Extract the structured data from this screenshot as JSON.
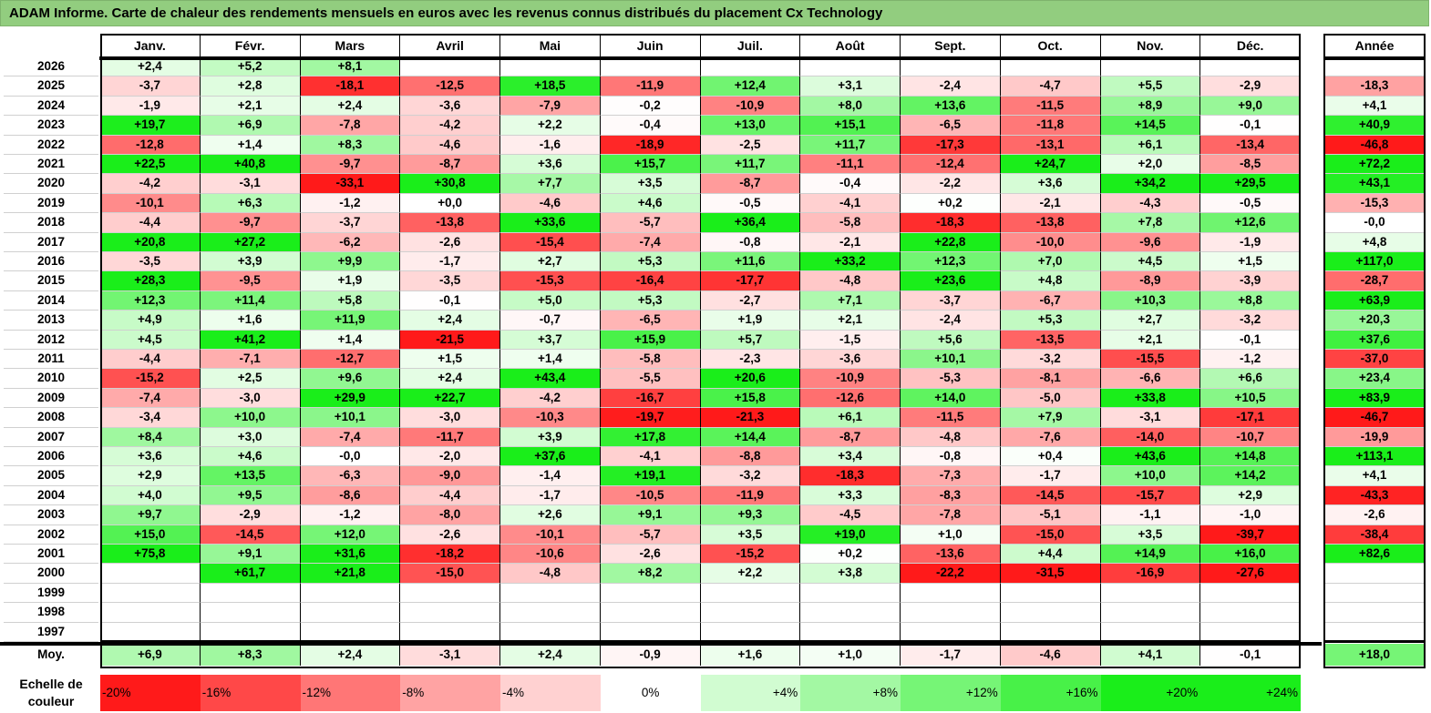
{
  "title": "ADAM Informe. Carte de chaleur des rendements mensuels en euros avec les revenus connus distribués du placement Cx Technology",
  "chart_data": {
    "type": "heatmap",
    "title": "ADAM Informe. Carte de chaleur des rendements mensuels en euros avec les revenus connus distribués du placement Cx Technology",
    "columns": [
      "Janv.",
      "Févr.",
      "Mars",
      "Avril",
      "Mai",
      "Juin",
      "Juil.",
      "Août",
      "Sept.",
      "Oct.",
      "Nov.",
      "Déc."
    ],
    "annual_header": "Année",
    "rows": [
      {
        "label": "2026",
        "values": [
          "+2,4",
          "+5,2",
          "+8,1",
          "",
          "",
          "",
          "",
          "",
          "",
          "",
          "",
          ""
        ],
        "annual": ""
      },
      {
        "label": "2025",
        "values": [
          "-3,7",
          "+2,8",
          "-18,1",
          "-12,5",
          "+18,5",
          "-11,9",
          "+12,4",
          "+3,1",
          "-2,4",
          "-4,7",
          "+5,5",
          "-2,9"
        ],
        "annual": "-18,3"
      },
      {
        "label": "2024",
        "values": [
          "-1,9",
          "+2,1",
          "+2,4",
          "-3,6",
          "-7,9",
          "-0,2",
          "-10,9",
          "+8,0",
          "+13,6",
          "-11,5",
          "+8,9",
          "+9,0"
        ],
        "annual": "+4,1"
      },
      {
        "label": "2023",
        "values": [
          "+19,7",
          "+6,9",
          "-7,8",
          "-4,2",
          "+2,2",
          "-0,4",
          "+13,0",
          "+15,1",
          "-6,5",
          "-11,8",
          "+14,5",
          "-0,1"
        ],
        "annual": "+40,9"
      },
      {
        "label": "2022",
        "values": [
          "-12,8",
          "+1,4",
          "+8,3",
          "-4,6",
          "-1,6",
          "-18,9",
          "-2,5",
          "+11,7",
          "-17,3",
          "-13,1",
          "+6,1",
          "-13,4"
        ],
        "annual": "-46,8"
      },
      {
        "label": "2021",
        "values": [
          "+22,5",
          "+40,8",
          "-9,7",
          "-8,7",
          "+3,6",
          "+15,7",
          "+11,7",
          "-11,1",
          "-12,4",
          "+24,7",
          "+2,0",
          "-8,5"
        ],
        "annual": "+72,2"
      },
      {
        "label": "2020",
        "values": [
          "-4,2",
          "-3,1",
          "-33,1",
          "+30,8",
          "+7,7",
          "+3,5",
          "-8,7",
          "-0,4",
          "-2,2",
          "+3,6",
          "+34,2",
          "+29,5"
        ],
        "annual": "+43,1"
      },
      {
        "label": "2019",
        "values": [
          "-10,1",
          "+6,3",
          "-1,2",
          "+0,0",
          "-4,6",
          "+4,6",
          "-0,5",
          "-4,1",
          "+0,2",
          "-2,1",
          "-4,3",
          "-0,5"
        ],
        "annual": "-15,3"
      },
      {
        "label": "2018",
        "values": [
          "-4,4",
          "-9,7",
          "-3,7",
          "-13,8",
          "+33,6",
          "-5,7",
          "+36,4",
          "-5,8",
          "-18,3",
          "-13,8",
          "+7,8",
          "+12,6"
        ],
        "annual": "-0,0"
      },
      {
        "label": "2017",
        "values": [
          "+20,8",
          "+27,2",
          "-6,2",
          "-2,6",
          "-15,4",
          "-7,4",
          "-0,8",
          "-2,1",
          "+22,8",
          "-10,0",
          "-9,6",
          "-1,9"
        ],
        "annual": "+4,8"
      },
      {
        "label": "2016",
        "values": [
          "-3,5",
          "+3,9",
          "+9,9",
          "-1,7",
          "+2,7",
          "+5,3",
          "+11,6",
          "+33,2",
          "+12,3",
          "+7,0",
          "+4,5",
          "+1,5"
        ],
        "annual": "+117,0"
      },
      {
        "label": "2015",
        "values": [
          "+28,3",
          "-9,5",
          "+1,9",
          "-3,5",
          "-15,3",
          "-16,4",
          "-17,7",
          "-4,8",
          "+23,6",
          "+4,8",
          "-8,9",
          "-3,9"
        ],
        "annual": "-28,7"
      },
      {
        "label": "2014",
        "values": [
          "+12,3",
          "+11,4",
          "+5,8",
          "-0,1",
          "+5,0",
          "+5,3",
          "-2,7",
          "+7,1",
          "-3,7",
          "-6,7",
          "+10,3",
          "+8,8"
        ],
        "annual": "+63,9"
      },
      {
        "label": "2013",
        "values": [
          "+4,9",
          "+1,6",
          "+11,9",
          "+2,4",
          "-0,7",
          "-6,5",
          "+1,9",
          "+2,1",
          "-2,4",
          "+5,3",
          "+2,7",
          "-3,2"
        ],
        "annual": "+20,3"
      },
      {
        "label": "2012",
        "values": [
          "+4,5",
          "+41,2",
          "+1,4",
          "-21,5",
          "+3,7",
          "+15,9",
          "+5,7",
          "-1,5",
          "+5,6",
          "-13,5",
          "+2,1",
          "-0,1"
        ],
        "annual": "+37,6"
      },
      {
        "label": "2011",
        "values": [
          "-4,4",
          "-7,1",
          "-12,7",
          "+1,5",
          "+1,4",
          "-5,8",
          "-2,3",
          "-3,6",
          "+10,1",
          "-3,2",
          "-15,5",
          "-1,2"
        ],
        "annual": "-37,0"
      },
      {
        "label": "2010",
        "values": [
          "-15,2",
          "+2,5",
          "+9,6",
          "+2,4",
          "+43,4",
          "-5,5",
          "+20,6",
          "-10,9",
          "-5,3",
          "-8,1",
          "-6,6",
          "+6,6"
        ],
        "annual": "+23,4"
      },
      {
        "label": "2009",
        "values": [
          "-7,4",
          "-3,0",
          "+29,9",
          "+22,7",
          "-4,2",
          "-16,7",
          "+15,8",
          "-12,6",
          "+14,0",
          "-5,0",
          "+33,8",
          "+10,5"
        ],
        "annual": "+83,9"
      },
      {
        "label": "2008",
        "values": [
          "-3,4",
          "+10,0",
          "+10,1",
          "-3,0",
          "-10,3",
          "-19,7",
          "-21,3",
          "+6,1",
          "-11,5",
          "+7,9",
          "-3,1",
          "-17,1"
        ],
        "annual": "-46,7"
      },
      {
        "label": "2007",
        "values": [
          "+8,4",
          "+3,0",
          "-7,4",
          "-11,7",
          "+3,9",
          "+17,8",
          "+14,4",
          "-8,7",
          "-4,8",
          "-7,6",
          "-14,0",
          "-10,7"
        ],
        "annual": "-19,9"
      },
      {
        "label": "2006",
        "values": [
          "+3,6",
          "+4,6",
          "-0,0",
          "-2,0",
          "+37,6",
          "-4,1",
          "-8,8",
          "+3,4",
          "-0,8",
          "+0,4",
          "+43,6",
          "+14,8"
        ],
        "annual": "+113,1"
      },
      {
        "label": "2005",
        "values": [
          "+2,9",
          "+13,5",
          "-6,3",
          "-9,0",
          "-1,4",
          "+19,1",
          "-3,2",
          "-18,3",
          "-7,3",
          "-1,7",
          "+10,0",
          "+14,2"
        ],
        "annual": "+4,1"
      },
      {
        "label": "2004",
        "values": [
          "+4,0",
          "+9,5",
          "-8,6",
          "-4,4",
          "-1,7",
          "-10,5",
          "-11,9",
          "+3,3",
          "-8,3",
          "-14,5",
          "-15,7",
          "+2,9"
        ],
        "annual": "-43,3"
      },
      {
        "label": "2003",
        "values": [
          "+9,7",
          "-2,9",
          "-1,2",
          "-8,0",
          "+2,6",
          "+9,1",
          "+9,3",
          "-4,5",
          "-7,8",
          "-5,1",
          "-1,1",
          "-1,0"
        ],
        "annual": "-2,6"
      },
      {
        "label": "2002",
        "values": [
          "+15,0",
          "-14,5",
          "+12,0",
          "-2,6",
          "-10,1",
          "-5,7",
          "+3,5",
          "+19,0",
          "+1,0",
          "-15,0",
          "+3,5",
          "-39,7"
        ],
        "annual": "-38,4"
      },
      {
        "label": "2001",
        "values": [
          "+75,8",
          "+9,1",
          "+31,6",
          "-18,2",
          "-10,6",
          "-2,6",
          "-15,2",
          "+0,2",
          "-13,6",
          "+4,4",
          "+14,9",
          "+16,0"
        ],
        "annual": "+82,6"
      },
      {
        "label": "2000",
        "values": [
          "",
          "+61,7",
          "+21,8",
          "-15,0",
          "-4,8",
          "+8,2",
          "+2,2",
          "+3,8",
          "-22,2",
          "-31,5",
          "-16,9",
          "-27,6"
        ],
        "annual": ""
      },
      {
        "label": "1999",
        "values": [
          "",
          "",
          "",
          "",
          "",
          "",
          "",
          "",
          "",
          "",
          "",
          ""
        ],
        "annual": ""
      },
      {
        "label": "1998",
        "values": [
          "",
          "",
          "",
          "",
          "",
          "",
          "",
          "",
          "",
          "",
          "",
          ""
        ],
        "annual": ""
      },
      {
        "label": "1997",
        "values": [
          "",
          "",
          "",
          "",
          "",
          "",
          "",
          "",
          "",
          "",
          "",
          ""
        ],
        "annual": ""
      }
    ],
    "average": {
      "label": "Moy.",
      "values": [
        "+6,9",
        "+8,3",
        "+2,4",
        "-3,1",
        "+2,4",
        "-0,9",
        "+1,6",
        "+1,0",
        "-1,7",
        "-4,6",
        "+4,1",
        "-0,1"
      ],
      "annual": "+18,0"
    },
    "color_scale": {
      "label": "Echelle de couleur",
      "stops": [
        "-20%",
        "-16%",
        "-12%",
        "-8%",
        "-4%",
        "0%",
        "+4%",
        "+8%",
        "+12%",
        "+16%",
        "+20%",
        "+24%"
      ]
    },
    "colors": {
      "neg_max": "#ff1a1a",
      "neutral": "#ffffff",
      "pos_max": "#1aee1a",
      "title_bg": "#92cd7f"
    }
  }
}
